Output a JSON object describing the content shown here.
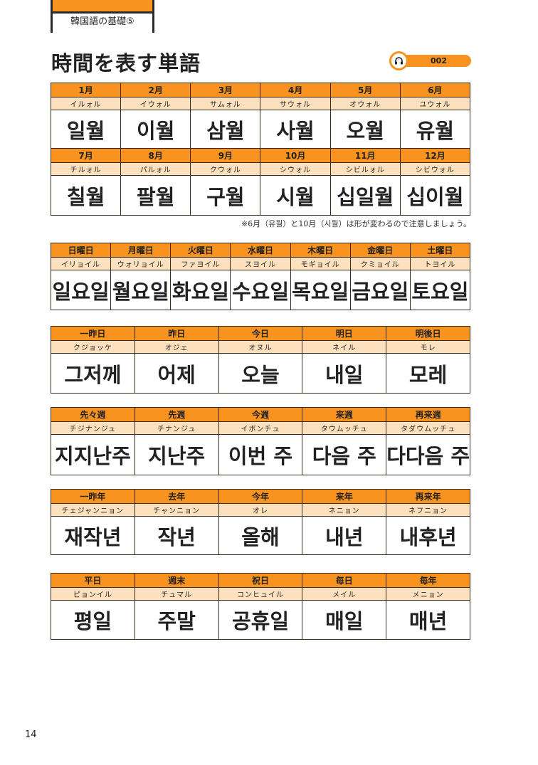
{
  "header_tab": "韓国語の基礎⑤",
  "title": "時間を表す単語",
  "audio": {
    "track": "002",
    "icon": "headphones-icon"
  },
  "colors": {
    "accent": "#f7931e",
    "reading_bg": "#fde0bd"
  },
  "note": "※6月（유월）と10月（시월）は形が変わるので注意しましょう。",
  "tables": [
    {
      "rows": [
        [
          {
            "h": "1月",
            "r": "イルォル",
            "w": "일월"
          },
          {
            "h": "2月",
            "r": "イウォル",
            "w": "이월"
          },
          {
            "h": "3月",
            "r": "サムォル",
            "w": "삼월"
          },
          {
            "h": "4月",
            "r": "サウォル",
            "w": "사월"
          },
          {
            "h": "5月",
            "r": "オウォル",
            "w": "오월"
          },
          {
            "h": "6月",
            "r": "ユウォル",
            "w": "유월"
          }
        ],
        [
          {
            "h": "7月",
            "r": "チルォル",
            "w": "칠월"
          },
          {
            "h": "8月",
            "r": "パルォル",
            "w": "팔월"
          },
          {
            "h": "9月",
            "r": "クウォル",
            "w": "구월"
          },
          {
            "h": "10月",
            "r": "シウォル",
            "w": "시월"
          },
          {
            "h": "11月",
            "r": "シビルォル",
            "w": "십일월"
          },
          {
            "h": "12月",
            "r": "シビウォル",
            "w": "십이월"
          }
        ]
      ]
    },
    {
      "rows": [
        [
          {
            "h": "日曜日",
            "r": "イリョイル",
            "w": "일요일"
          },
          {
            "h": "月曜日",
            "r": "ウォリョイル",
            "w": "월요일"
          },
          {
            "h": "火曜日",
            "r": "ファヨイル",
            "w": "화요일"
          },
          {
            "h": "水曜日",
            "r": "スヨイル",
            "w": "수요일"
          },
          {
            "h": "木曜日",
            "r": "モギョイル",
            "w": "목요일"
          },
          {
            "h": "金曜日",
            "r": "クミョイル",
            "w": "금요일"
          },
          {
            "h": "土曜日",
            "r": "トヨイル",
            "w": "토요일"
          }
        ]
      ]
    },
    {
      "rows": [
        [
          {
            "h": "一昨日",
            "r": "クジョッケ",
            "w": "그저께"
          },
          {
            "h": "昨日",
            "r": "オジェ",
            "w": "어제"
          },
          {
            "h": "今日",
            "r": "オヌル",
            "w": "오늘"
          },
          {
            "h": "明日",
            "r": "ネイル",
            "w": "내일"
          },
          {
            "h": "明後日",
            "r": "モレ",
            "w": "모레"
          }
        ]
      ]
    },
    {
      "rows": [
        [
          {
            "h": "先々週",
            "r": "チジナンジュ",
            "w": "지지난주"
          },
          {
            "h": "先週",
            "r": "チナンジュ",
            "w": "지난주"
          },
          {
            "h": "今週",
            "r": "イボンチュ",
            "w": "이번 주"
          },
          {
            "h": "来週",
            "r": "タウムッチュ",
            "w": "다음 주"
          },
          {
            "h": "再来週",
            "r": "タダウムッチュ",
            "w": "다다음 주"
          }
        ]
      ]
    },
    {
      "rows": [
        [
          {
            "h": "一昨年",
            "r": "チェジャンニョン",
            "w": "재작년"
          },
          {
            "h": "去年",
            "r": "チャンニョン",
            "w": "작년"
          },
          {
            "h": "今年",
            "r": "オレ",
            "w": "올해"
          },
          {
            "h": "来年",
            "r": "ネニョン",
            "w": "내년"
          },
          {
            "h": "再来年",
            "r": "ネフニョン",
            "w": "내후년"
          }
        ]
      ]
    },
    {
      "rows": [
        [
          {
            "h": "平日",
            "r": "ピョンイル",
            "w": "평일"
          },
          {
            "h": "週末",
            "r": "チュマル",
            "w": "주말"
          },
          {
            "h": "祝日",
            "r": "コンヒュイル",
            "w": "공휴일"
          },
          {
            "h": "毎日",
            "r": "メイル",
            "w": "매일"
          },
          {
            "h": "毎年",
            "r": "メニョン",
            "w": "매년"
          }
        ]
      ]
    }
  ],
  "page_number": "14"
}
